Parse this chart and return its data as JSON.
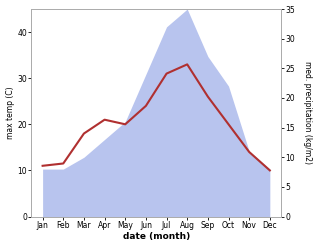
{
  "months": [
    "Jan",
    "Feb",
    "Mar",
    "Apr",
    "May",
    "Jun",
    "Jul",
    "Aug",
    "Sep",
    "Oct",
    "Nov",
    "Dec"
  ],
  "temperature": [
    11,
    11.5,
    18,
    21,
    20,
    24,
    31,
    33,
    26,
    20,
    14,
    10
  ],
  "precipitation": [
    8,
    8,
    10,
    13,
    16,
    24,
    32,
    35,
    27,
    22,
    11,
    8
  ],
  "temp_color": "#b03030",
  "precip_fill_color": "#b8c4ee",
  "xlabel": "date (month)",
  "ylabel_left": "max temp (C)",
  "ylabel_right": "med. precipitation (kg/m2)",
  "ylim_left": [
    0,
    45
  ],
  "ylim_right": [
    0,
    35
  ],
  "yticks_left": [
    0,
    10,
    20,
    30,
    40
  ],
  "yticks_right": [
    0,
    5,
    10,
    15,
    20,
    25,
    30,
    35
  ],
  "background_color": "#ffffff"
}
